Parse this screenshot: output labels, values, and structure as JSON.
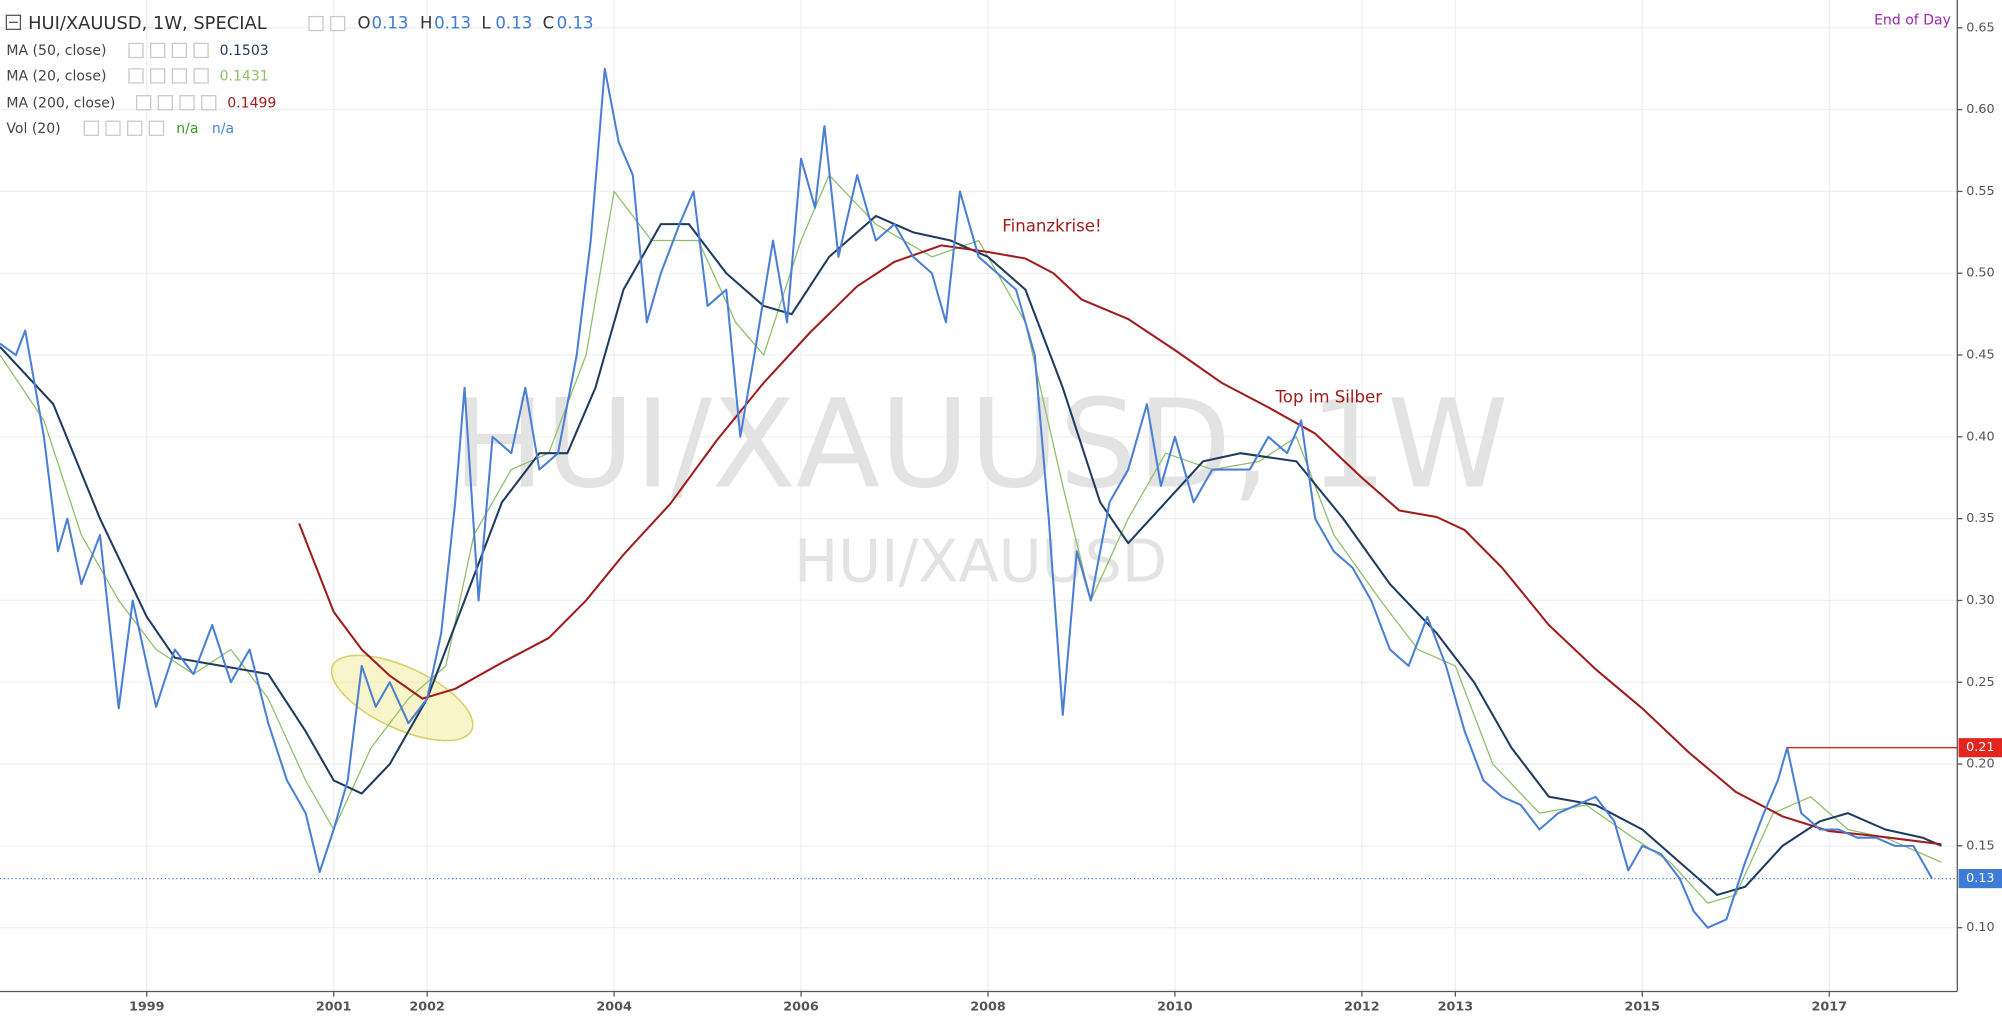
{
  "chart_data": {
    "type": "line",
    "interval_label": "End of Day",
    "watermark": [
      "HUI/XAUUSD, 1W",
      "HUI/XAUUSD"
    ],
    "xlim": [
      1997.43,
      2018.37
    ],
    "xticks": [
      1999,
      2001,
      2002,
      2004,
      2006,
      2008,
      2010,
      2012,
      2013,
      2015,
      2017
    ],
    "ylim": [
      0.061,
      0.667
    ],
    "yticks": [
      {
        "value": 0.1,
        "label": "0.10"
      },
      0.15,
      {
        "value": 0.2,
        "label": "0.20"
      },
      0.25,
      {
        "value": 0.3,
        "label": "0.30"
      },
      0.35,
      {
        "value": 0.4,
        "label": "0.40"
      },
      0.45,
      {
        "value": 0.5,
        "label": "0.50"
      },
      0.55,
      {
        "value": 0.6,
        "label": "0.60"
      },
      0.65
    ],
    "grid": true,
    "series": [
      {
        "name": "HUI/XAUUSD, 1W, SPECIAL",
        "color": "#4a7fd4",
        "ohlc": [
          {
            "label": "O",
            "value": 0.13
          },
          {
            "label": "H",
            "value": 0.13
          },
          {
            "label": "L",
            "value": 0.13
          },
          {
            "label": "C",
            "value": 0.13
          }
        ],
        "x": [
          1997.43,
          1997.6,
          1997.7,
          1997.9,
          1998.05,
          1998.15,
          1998.3,
          1998.5,
          1998.7,
          1998.85,
          1999.1,
          1999.3,
          1999.5,
          1999.7,
          1999.9,
          2000.1,
          2000.3,
          2000.5,
          2000.7,
          2000.85,
          2001.0,
          2001.15,
          2001.3,
          2001.45,
          2001.6,
          2001.8,
          2002.0,
          2002.15,
          2002.3,
          2002.4,
          2002.55,
          2002.7,
          2002.9,
          2003.05,
          2003.2,
          2003.4,
          2003.6,
          2003.75,
          2003.9,
          2004.05,
          2004.2,
          2004.35,
          2004.5,
          2004.7,
          2004.85,
          2005.0,
          2005.2,
          2005.35,
          2005.5,
          2005.7,
          2005.85,
          2006.0,
          2006.15,
          2006.25,
          2006.4,
          2006.6,
          2006.8,
          2007.0,
          2007.2,
          2007.4,
          2007.55,
          2007.7,
          2007.9,
          2008.1,
          2008.3,
          2008.5,
          2008.65,
          2008.8,
          2008.95,
          2009.1,
          2009.3,
          2009.5,
          2009.7,
          2009.85,
          2010.0,
          2010.2,
          2010.4,
          2010.6,
          2010.8,
          2011.0,
          2011.2,
          2011.35,
          2011.5,
          2011.7,
          2011.9,
          2012.1,
          2012.3,
          2012.5,
          2012.7,
          2012.9,
          2013.1,
          2013.3,
          2013.5,
          2013.7,
          2013.9,
          2014.1,
          2014.3,
          2014.5,
          2014.7,
          2014.85,
          2015.0,
          2015.2,
          2015.4,
          2015.55,
          2015.7,
          2015.9,
          2016.1,
          2016.3,
          2016.45,
          2016.55,
          2016.7,
          2016.9,
          2017.1,
          2017.3,
          2017.5,
          2017.7,
          2017.9,
          2018.1
        ],
        "values": [
          0.457,
          0.45,
          0.465,
          0.4,
          0.33,
          0.35,
          0.31,
          0.34,
          0.234,
          0.3,
          0.235,
          0.27,
          0.255,
          0.285,
          0.25,
          0.27,
          0.225,
          0.19,
          0.17,
          0.134,
          0.16,
          0.19,
          0.26,
          0.235,
          0.25,
          0.225,
          0.24,
          0.28,
          0.36,
          0.43,
          0.3,
          0.4,
          0.39,
          0.43,
          0.38,
          0.39,
          0.45,
          0.52,
          0.625,
          0.58,
          0.56,
          0.47,
          0.5,
          0.53,
          0.55,
          0.48,
          0.49,
          0.4,
          0.45,
          0.52,
          0.47,
          0.57,
          0.54,
          0.59,
          0.51,
          0.56,
          0.52,
          0.53,
          0.51,
          0.5,
          0.47,
          0.55,
          0.51,
          0.5,
          0.49,
          0.45,
          0.35,
          0.23,
          0.33,
          0.3,
          0.36,
          0.38,
          0.42,
          0.37,
          0.4,
          0.36,
          0.38,
          0.38,
          0.38,
          0.4,
          0.39,
          0.41,
          0.35,
          0.33,
          0.32,
          0.3,
          0.27,
          0.26,
          0.29,
          0.26,
          0.22,
          0.19,
          0.18,
          0.175,
          0.16,
          0.17,
          0.175,
          0.18,
          0.165,
          0.135,
          0.15,
          0.145,
          0.13,
          0.11,
          0.1,
          0.105,
          0.14,
          0.17,
          0.19,
          0.21,
          0.17,
          0.16,
          0.16,
          0.155,
          0.155,
          0.15,
          0.15,
          0.13
        ]
      },
      {
        "name": "MA (50, close)",
        "color": "#1d3b5e",
        "last_value": 0.1503,
        "x": [
          1997.43,
          1998.0,
          1998.5,
          1999.0,
          1999.3,
          1999.8,
          2000.3,
          2000.7,
          2001.0,
          2001.3,
          2001.6,
          2002.0,
          2002.4,
          2002.8,
          2003.2,
          2003.5,
          2003.8,
          2004.1,
          2004.5,
          2004.8,
          2005.2,
          2005.6,
          2005.9,
          2006.3,
          2006.8,
          2007.2,
          2007.6,
          2008.0,
          2008.4,
          2008.8,
          2009.2,
          2009.5,
          2009.9,
          2010.3,
          2010.7,
          2011.3,
          2011.8,
          2012.3,
          2012.8,
          2013.2,
          2013.6,
          2014.0,
          2014.5,
          2015.0,
          2015.4,
          2015.8,
          2016.1,
          2016.5,
          2016.9,
          2017.2,
          2017.6,
          2018.0,
          2018.2
        ],
        "values": [
          0.455,
          0.42,
          0.35,
          0.29,
          0.265,
          0.26,
          0.255,
          0.22,
          0.19,
          0.182,
          0.2,
          0.24,
          0.3,
          0.36,
          0.39,
          0.39,
          0.43,
          0.49,
          0.53,
          0.53,
          0.5,
          0.48,
          0.475,
          0.51,
          0.535,
          0.525,
          0.52,
          0.51,
          0.49,
          0.43,
          0.36,
          0.335,
          0.36,
          0.385,
          0.39,
          0.385,
          0.35,
          0.31,
          0.28,
          0.25,
          0.21,
          0.18,
          0.175,
          0.16,
          0.14,
          0.12,
          0.125,
          0.15,
          0.165,
          0.17,
          0.16,
          0.155,
          0.15
        ]
      },
      {
        "name": "MA (20, close)",
        "color": "#8fbf6a",
        "last_value": 0.1431,
        "x": [
          1997.43,
          1997.9,
          1998.3,
          1998.7,
          1999.1,
          1999.5,
          1999.9,
          2000.3,
          2000.7,
          2001.0,
          2001.4,
          2001.8,
          2002.2,
          2002.5,
          2002.9,
          2003.3,
          2003.7,
          2004.0,
          2004.4,
          2004.9,
          2005.3,
          2005.6,
          2006.0,
          2006.3,
          2006.8,
          2007.4,
          2007.9,
          2008.4,
          2008.8,
          2009.1,
          2009.5,
          2009.9,
          2010.4,
          2010.9,
          2011.3,
          2011.7,
          2012.2,
          2012.6,
          2013.0,
          2013.4,
          2013.9,
          2014.4,
          2014.9,
          2015.3,
          2015.7,
          2016.0,
          2016.4,
          2016.8,
          2017.2,
          2017.6,
          2018.2
        ],
        "values": [
          0.45,
          0.41,
          0.34,
          0.3,
          0.27,
          0.255,
          0.27,
          0.24,
          0.19,
          0.16,
          0.21,
          0.24,
          0.26,
          0.34,
          0.38,
          0.39,
          0.45,
          0.55,
          0.52,
          0.52,
          0.47,
          0.45,
          0.52,
          0.56,
          0.53,
          0.51,
          0.52,
          0.47,
          0.37,
          0.3,
          0.35,
          0.39,
          0.38,
          0.385,
          0.4,
          0.34,
          0.3,
          0.27,
          0.26,
          0.2,
          0.17,
          0.175,
          0.155,
          0.14,
          0.115,
          0.12,
          0.17,
          0.18,
          0.16,
          0.155,
          0.14
        ]
      },
      {
        "name": "MA (200, close)",
        "color": "#a01c1c",
        "last_value": 0.1499,
        "x": [
          2000.63,
          2001.0,
          2001.3,
          2001.6,
          2001.95,
          2002.3,
          2002.8,
          2003.3,
          2003.7,
          2004.1,
          2004.6,
          2005.1,
          2005.6,
          2006.1,
          2006.6,
          2007.0,
          2007.5,
          2008.0,
          2008.4,
          2008.7,
          2009.0,
          2009.5,
          2010.0,
          2010.5,
          2011.0,
          2011.5,
          2012.0,
          2012.4,
          2012.8,
          2013.1,
          2013.5,
          2014.0,
          2014.5,
          2015.0,
          2015.5,
          2016.0,
          2016.5,
          2017.0,
          2017.5,
          2018.2
        ],
        "values": [
          0.347,
          0.293,
          0.27,
          0.254,
          0.24,
          0.246,
          0.262,
          0.277,
          0.3,
          0.328,
          0.359,
          0.398,
          0.433,
          0.464,
          0.492,
          0.507,
          0.517,
          0.513,
          0.509,
          0.5,
          0.484,
          0.472,
          0.453,
          0.433,
          0.418,
          0.402,
          0.375,
          0.355,
          0.351,
          0.343,
          0.32,
          0.285,
          0.258,
          0.234,
          0.207,
          0.183,
          0.168,
          0.159,
          0.156,
          0.151
        ]
      }
    ],
    "volume_indicator": {
      "name": "Vol (20)",
      "values": [
        "n/a",
        "n/a"
      ],
      "colors": [
        "#3c9a2a",
        "#4a7fd4"
      ]
    },
    "annotations": [
      "Finanzkrise!",
      "Top im Silber"
    ],
    "price_lines": [
      {
        "value": 0.21,
        "color": "#e0261f"
      },
      {
        "value": 0.13,
        "color": "#3d7bd6"
      }
    ]
  }
}
